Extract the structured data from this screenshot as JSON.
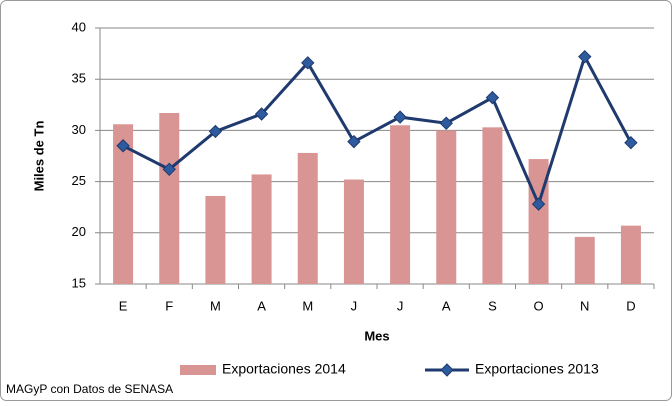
{
  "chart_data": {
    "type": "bar_line",
    "ylabel": "Miles de Tn",
    "xlabel": "Mes",
    "categories": [
      "E",
      "F",
      "M",
      "A",
      "M",
      "J",
      "J",
      "A",
      "S",
      "O",
      "N",
      "D"
    ],
    "series": [
      {
        "name": "Exportaciones 2014",
        "type": "bar",
        "color": "#d99594",
        "values": [
          30.6,
          31.7,
          23.6,
          25.7,
          27.8,
          25.2,
          30.5,
          30.0,
          30.3,
          27.2,
          19.6,
          20.7
        ]
      },
      {
        "name": "Exportaciones 2013",
        "type": "line",
        "color": "#1f3a6e",
        "marker_color": "#2e5a9e",
        "values": [
          28.5,
          26.2,
          29.9,
          31.6,
          36.6,
          28.9,
          31.3,
          30.7,
          33.2,
          22.8,
          37.2,
          28.8
        ]
      }
    ],
    "ylim": [
      15,
      40
    ],
    "yticks": [
      15,
      20,
      25,
      30,
      35,
      40
    ],
    "grid": true,
    "legend": "bottom",
    "source": "MAGyP con Datos de SENASA"
  }
}
